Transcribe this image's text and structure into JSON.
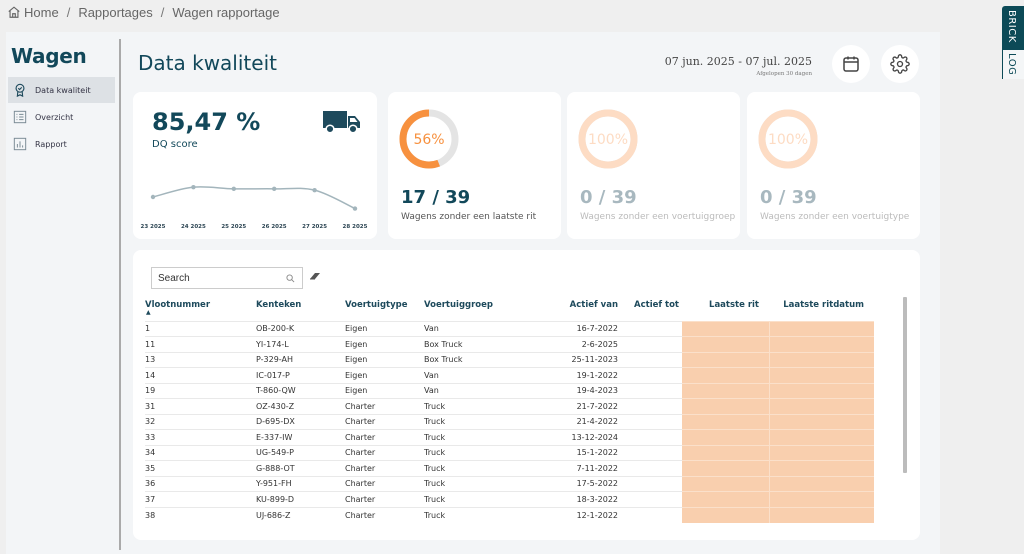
{
  "breadcrumb": {
    "items": [
      "Home",
      "Rapportages",
      "Wagen rapportage"
    ],
    "separator": "/"
  },
  "sidebar": {
    "title": "Wagen",
    "items": [
      {
        "label": "Data kwaliteit",
        "icon": "badge-icon",
        "active": true
      },
      {
        "label": "Overzicht",
        "icon": "list-icon",
        "active": false
      },
      {
        "label": "Rapport",
        "icon": "bar-chart-icon",
        "active": false
      }
    ]
  },
  "header": {
    "title": "Data kwaliteit",
    "date_range": "07 jun. 2025 - 07 jul. 2025",
    "date_sub": "Afgelopen 30 dagen",
    "calendar_icon": "calendar-icon",
    "settings_icon": "gear-icon"
  },
  "dq_card": {
    "value": "85,47 %",
    "label": "DQ score",
    "icon": "truck-icon"
  },
  "chart_data": {
    "type": "line",
    "title": "",
    "xlabel": "",
    "ylabel": "",
    "categories": [
      "23 2025",
      "24 2025",
      "25 2025",
      "26 2025",
      "27 2025",
      "28 2025"
    ],
    "values": [
      85.5,
      87.8,
      87.4,
      87.4,
      87.1,
      82.8
    ],
    "ylim": [
      82,
      89
    ],
    "grid": false,
    "color": "#a3b5bc"
  },
  "kpis": [
    {
      "percent": 56,
      "percent_label": "56%",
      "value": "17 / 39",
      "label": "Wagens zonder een laatste rit",
      "faded": false
    },
    {
      "percent": 100,
      "percent_label": "100%",
      "value": "0 / 39",
      "label": "Wagens zonder een voertuiggroep",
      "faded": true
    },
    {
      "percent": 100,
      "percent_label": "100%",
      "value": "0 / 39",
      "label": "Wagens zonder een voertuigtype",
      "faded": true
    }
  ],
  "colors": {
    "accent_orange": "#f7913f",
    "faded_orange": "#fddcc4",
    "ring_track": "#e4e4e4",
    "primary_dark": "#12485a",
    "highlight_cell": "#f9cfae"
  },
  "table": {
    "search_placeholder": "Search",
    "columns": [
      "Vlootnummer",
      "Kenteken",
      "Voertuigtype",
      "Voertuiggroep",
      "Actief van",
      "Actief tot",
      "Laatste rit",
      "Laatste ritdatum"
    ],
    "sort_indicator": "▲",
    "rows": [
      [
        "1",
        "OB-200-K",
        "Eigen",
        "Van",
        "16-7-2022",
        "",
        "",
        ""
      ],
      [
        "11",
        "YI-174-L",
        "Eigen",
        "Box Truck",
        "2-6-2025",
        "",
        "",
        ""
      ],
      [
        "13",
        "P-329-AH",
        "Eigen",
        "Box Truck",
        "25-11-2023",
        "",
        "",
        ""
      ],
      [
        "14",
        "IC-017-P",
        "Eigen",
        "Van",
        "19-1-2022",
        "",
        "",
        ""
      ],
      [
        "19",
        "T-860-QW",
        "Eigen",
        "Van",
        "19-4-2023",
        "",
        "",
        ""
      ],
      [
        "31",
        "OZ-430-Z",
        "Charter",
        "Truck",
        "21-7-2022",
        "",
        "",
        ""
      ],
      [
        "32",
        "D-695-DX",
        "Charter",
        "Truck",
        "21-4-2022",
        "",
        "",
        ""
      ],
      [
        "33",
        "E-337-IW",
        "Charter",
        "Truck",
        "13-12-2024",
        "",
        "",
        ""
      ],
      [
        "34",
        "UG-549-P",
        "Charter",
        "Truck",
        "15-1-2022",
        "",
        "",
        ""
      ],
      [
        "35",
        "G-888-OT",
        "Charter",
        "Truck",
        "7-11-2022",
        "",
        "",
        ""
      ],
      [
        "36",
        "Y-951-FH",
        "Charter",
        "Truck",
        "17-5-2022",
        "",
        "",
        ""
      ],
      [
        "37",
        "KU-899-D",
        "Charter",
        "Truck",
        "18-3-2022",
        "",
        "",
        ""
      ],
      [
        "38",
        "UJ-686-Z",
        "Charter",
        "Truck",
        "12-1-2022",
        "",
        "",
        ""
      ]
    ]
  },
  "side_tab": {
    "top": "BRICK",
    "bottom": "LOG"
  }
}
